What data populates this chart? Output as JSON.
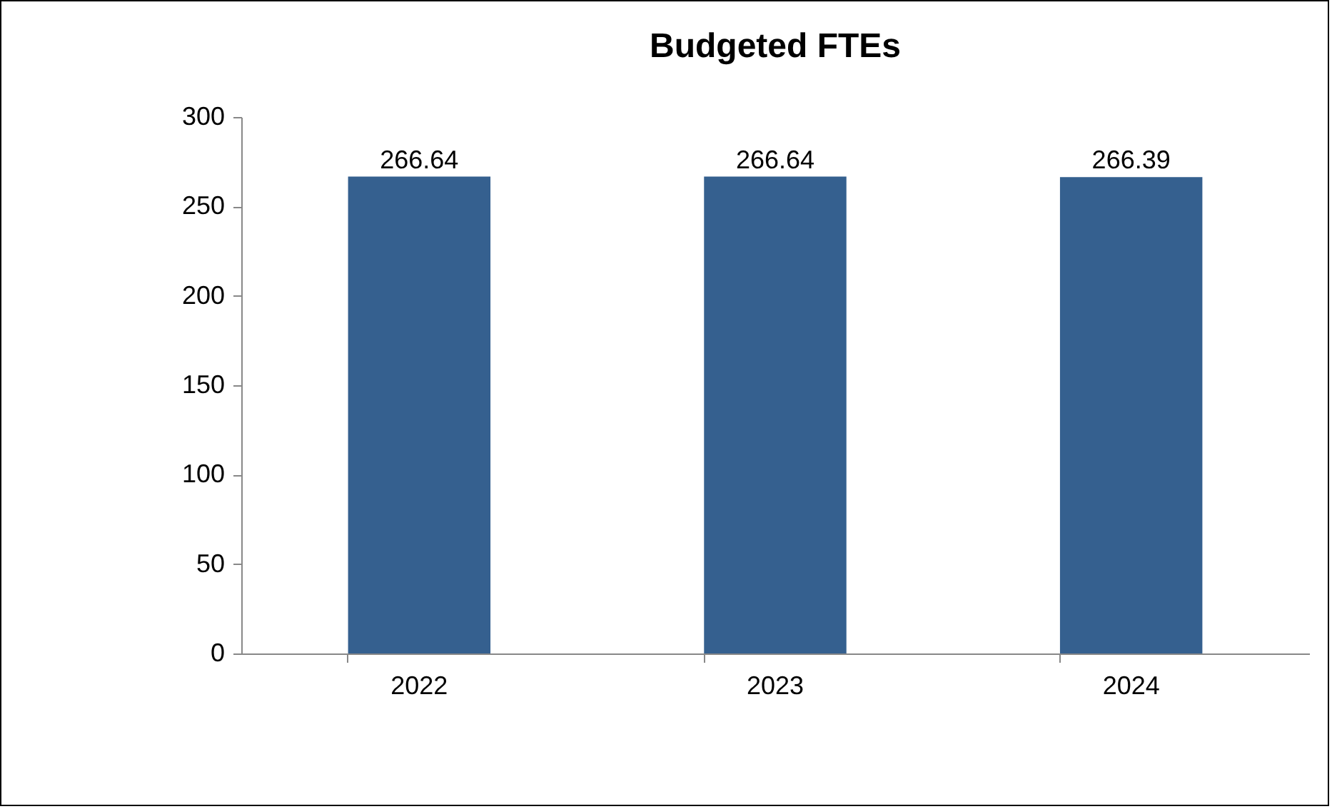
{
  "chart_data": {
    "type": "bar",
    "title": "Budgeted FTEs",
    "categories": [
      "2022",
      "2023",
      "2024"
    ],
    "values": [
      266.64,
      266.64,
      266.39
    ],
    "color": "#35608f",
    "ylim": [
      0,
      300
    ],
    "yticks": [
      0,
      50,
      100,
      150,
      200,
      250,
      300
    ],
    "grid": false,
    "data_labels": true
  }
}
